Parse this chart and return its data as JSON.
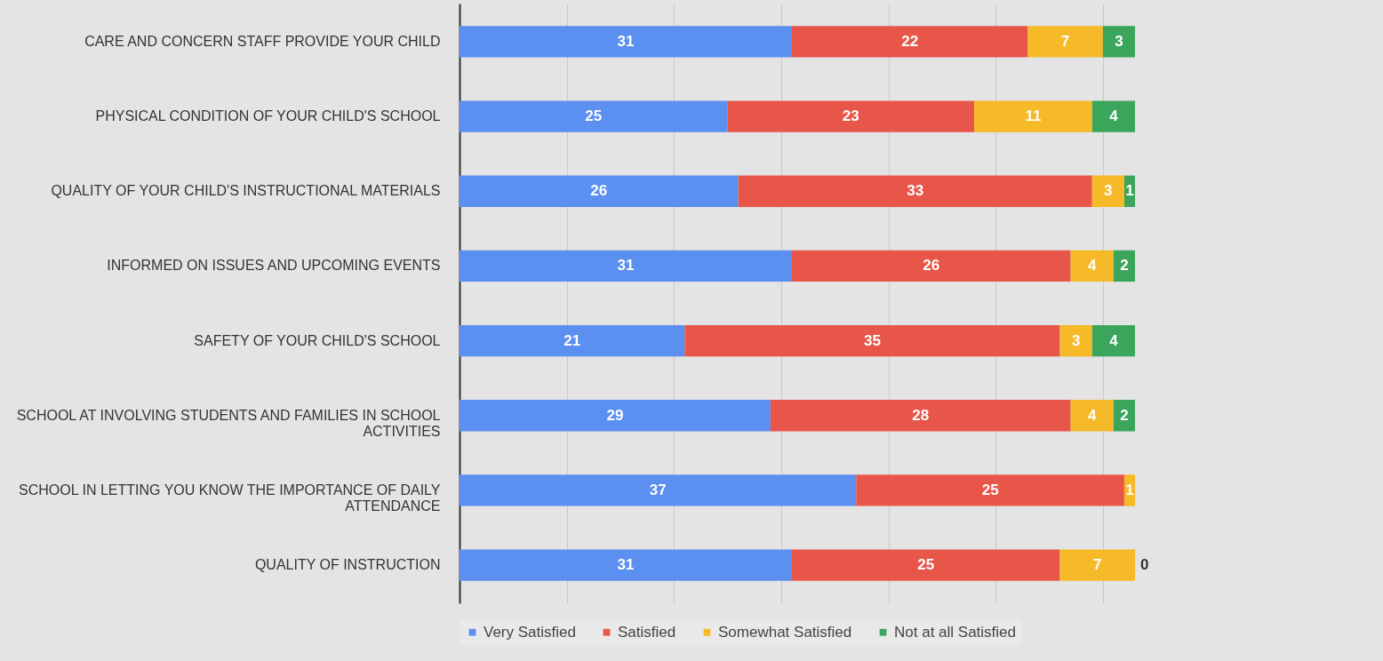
{
  "chart_data": {
    "type": "bar",
    "orientation": "horizontal",
    "stacked": true,
    "data_labels": true,
    "grid": "x",
    "legend": "bottom",
    "tick_labels": "y",
    "categories": [
      "CARE AND CONCERN STAFF  PROVIDE YOUR CHILD",
      "PHYSICAL  CONDITION OF YOUR CHILD'S SCHOOL",
      "QUALITY  OF YOUR CHILD'S INSTRUCTIONAL MATERIALS",
      "INFORMED ON ISSUES AND UPCOMING EVENTS",
      "SAFETY  OF YOUR CHILD'S SCHOOL",
      "SCHOOL AT INVOLVING  STUDENTS AND FAMILIES  IN SCHOOL ACTIVITIES",
      "SCHOOL IN LETTING YOU KNOW THE IMPORTANCE  OF DAILY ATTENDANCE",
      "QUALITY  OF INSTRUCTION"
    ],
    "xticks": [
      {
        "value": 0,
        "label": null
      },
      {
        "value": 10,
        "label": null
      },
      {
        "value": 20,
        "label": null
      },
      {
        "value": 30,
        "label": null
      },
      {
        "value": 40,
        "label": null
      },
      {
        "value": 50,
        "label": null
      },
      {
        "value": 60,
        "label": null
      }
    ],
    "series": [
      {
        "name": "Very Satisfied",
        "color": "#5b8ff0",
        "values": [
          31,
          25,
          26,
          31,
          21,
          29,
          37,
          31
        ]
      },
      {
        "name": "Satisfied",
        "color": "#e8564a",
        "values": [
          22,
          23,
          33,
          26,
          35,
          28,
          25,
          25
        ]
      },
      {
        "name": "Somewhat Satisfied",
        "color": "#f6b928",
        "values": [
          7,
          11,
          3,
          4,
          3,
          4,
          1,
          7
        ]
      },
      {
        "name": "Not at all Satisfied",
        "color": "#3ba55c",
        "values": [
          3,
          4,
          1,
          2,
          4,
          2,
          null,
          0
        ]
      }
    ]
  }
}
